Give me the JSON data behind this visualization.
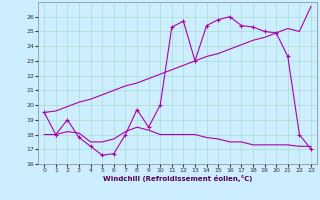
{
  "xlabel": "Windchill (Refroidissement éolien,°C)",
  "bg_color": "#cceeff",
  "grid_color": "#aaddcc",
  "line_color": "#aa00aa",
  "xlim": [
    -0.5,
    23.5
  ],
  "ylim": [
    16,
    27
  ],
  "yticks": [
    16,
    17,
    18,
    19,
    20,
    21,
    22,
    23,
    24,
    25,
    26
  ],
  "xticks": [
    0,
    1,
    2,
    3,
    4,
    5,
    6,
    7,
    8,
    9,
    10,
    11,
    12,
    13,
    14,
    15,
    16,
    17,
    18,
    19,
    20,
    21,
    22,
    23
  ],
  "line1_x": [
    0,
    1,
    2,
    3,
    4,
    5,
    6,
    7,
    8,
    9,
    10,
    11,
    12,
    13,
    14,
    15,
    16,
    17,
    18,
    19,
    20,
    21,
    22,
    23
  ],
  "line1_y": [
    19.5,
    18.0,
    19.0,
    17.8,
    17.2,
    16.6,
    16.7,
    18.0,
    19.7,
    18.5,
    20.0,
    25.3,
    25.7,
    23.0,
    25.4,
    25.8,
    26.0,
    25.4,
    25.3,
    25.0,
    24.9,
    23.3,
    18.0,
    17.0
  ],
  "line2_x": [
    0,
    1,
    2,
    3,
    4,
    5,
    6,
    7,
    8,
    9,
    10,
    11,
    12,
    13,
    14,
    15,
    16,
    17,
    18,
    19,
    20,
    21,
    22,
    23
  ],
  "line2_y": [
    18.0,
    18.0,
    18.2,
    18.1,
    17.5,
    17.5,
    17.7,
    18.2,
    18.5,
    18.3,
    18.0,
    18.0,
    18.0,
    18.0,
    17.8,
    17.7,
    17.5,
    17.5,
    17.3,
    17.3,
    17.3,
    17.3,
    17.2,
    17.2
  ],
  "line3_x": [
    0,
    1,
    2,
    3,
    4,
    5,
    6,
    7,
    8,
    9,
    10,
    11,
    12,
    13,
    14,
    15,
    16,
    17,
    18,
    19,
    20,
    21,
    22,
    23
  ],
  "line3_y": [
    19.5,
    19.6,
    19.9,
    20.2,
    20.4,
    20.7,
    21.0,
    21.3,
    21.5,
    21.8,
    22.1,
    22.4,
    22.7,
    23.0,
    23.3,
    23.5,
    23.8,
    24.1,
    24.4,
    24.6,
    24.9,
    25.2,
    25.0,
    26.7
  ]
}
